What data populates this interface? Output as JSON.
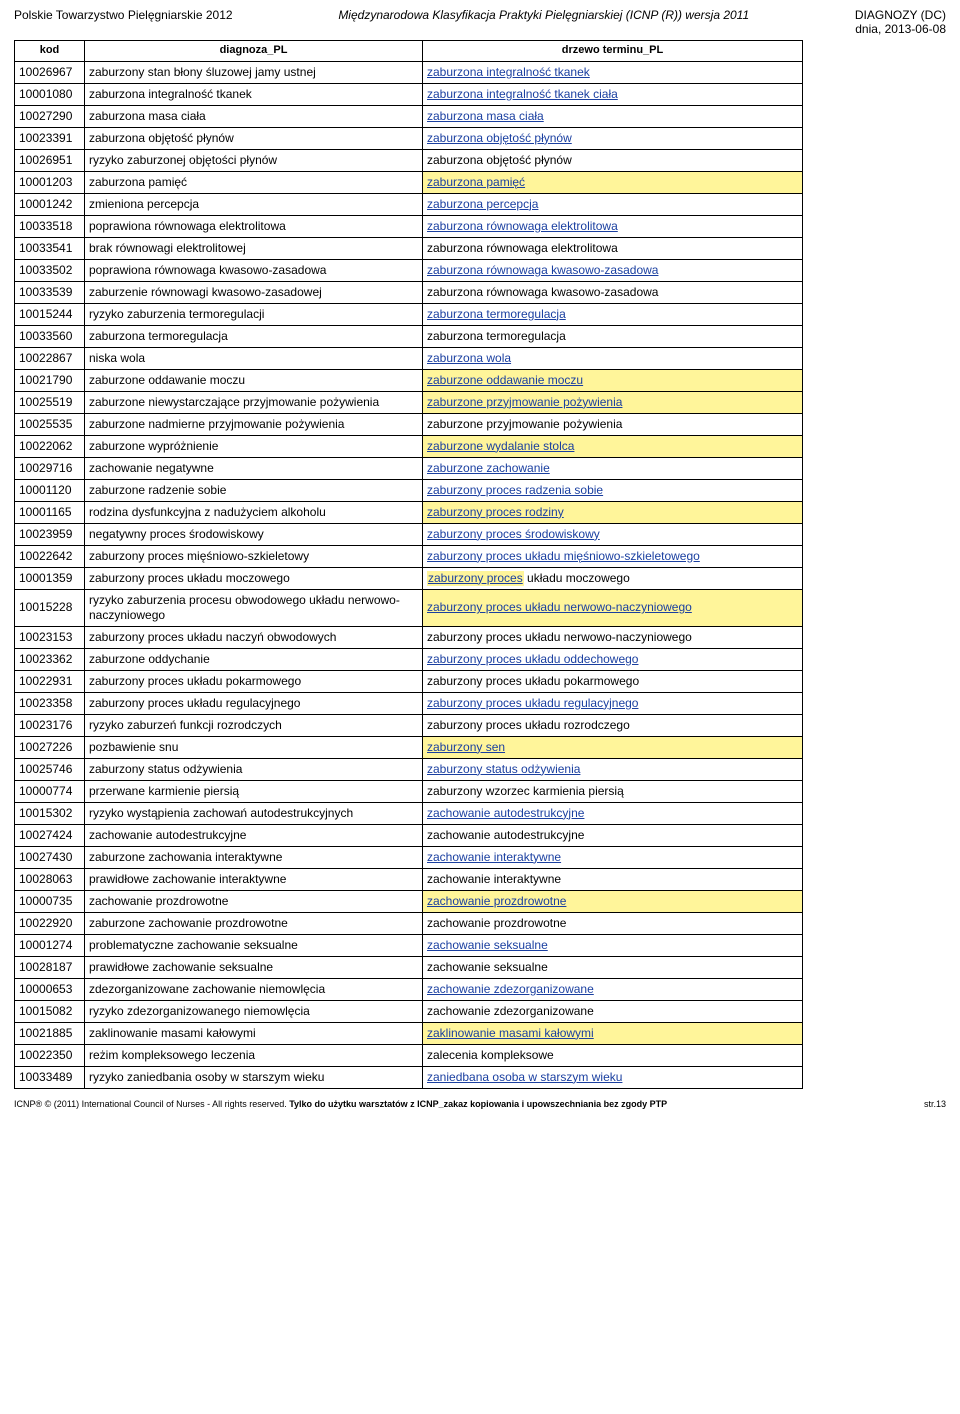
{
  "header": {
    "org": "Polskie Towarzystwo Pielęgniarskie 2012",
    "subtitle": "Międzynarodowa Klasyfikacja Praktyki Pielęgniarskiej (ICNP (R)) wersja 2011",
    "right1": "DIAGNOZY (DC)",
    "right2": "dnia, 2013-06-08"
  },
  "columns": {
    "kod": "kod",
    "diag": "diagnoza_PL",
    "tree": "drzewo terminu_PL"
  },
  "footer": {
    "left": "ICNP® © (2011) International Council of Nurses - All rights reserved. ",
    "bold": "Tylko do użytku warsztatów z ICNP_zakaz kopiowania i upowszechniania bez zgody PTP",
    "page": "str.13"
  },
  "rows": [
    {
      "kod": "10026967",
      "diag": "zaburzony stan błony śluzowej jamy ustnej",
      "tree": "zaburzona integralność tkanek",
      "style": "link"
    },
    {
      "kod": "10001080",
      "diag": "zaburzona integralność tkanek",
      "tree": "zaburzona integralność tkanek ciała",
      "style": "link"
    },
    {
      "kod": "10027290",
      "diag": "zaburzona masa ciała",
      "tree": "zaburzona masa ciała",
      "style": "link"
    },
    {
      "kod": "10023391",
      "diag": "zaburzona objętość płynów",
      "tree": "zaburzona objętość płynów",
      "style": "link"
    },
    {
      "kod": "10026951",
      "diag": "ryzyko zaburzonej objętości płynów",
      "tree": "zaburzona objętość płynów",
      "style": "plain"
    },
    {
      "kod": "10001203",
      "diag": "zaburzona pamięć",
      "tree": "zaburzona pamięć",
      "style": "hilink"
    },
    {
      "kod": "10001242",
      "diag": "zmieniona percepcja",
      "tree": "zaburzona percepcja",
      "style": "link"
    },
    {
      "kod": "10033518",
      "diag": "poprawiona równowaga elektrolitowa",
      "tree": "zaburzona równowaga elektrolitowa",
      "style": "link"
    },
    {
      "kod": "10033541",
      "diag": "brak równowagi elektrolitowej",
      "tree": "zaburzona równowaga elektrolitowa",
      "style": "plain"
    },
    {
      "kod": "10033502",
      "diag": "poprawiona równowaga kwasowo-zasadowa",
      "tree": "zaburzona równowaga kwasowo-zasadowa",
      "style": "link"
    },
    {
      "kod": "10033539",
      "diag": "zaburzenie równowagi kwasowo-zasadowej",
      "tree": "zaburzona równowaga kwasowo-zasadowa",
      "style": "plain"
    },
    {
      "kod": "10015244",
      "diag": "ryzyko zaburzenia termoregulacji",
      "tree": "zaburzona termoregulacja",
      "style": "link"
    },
    {
      "kod": "10033560",
      "diag": "zaburzona termoregulacja",
      "tree": "zaburzona termoregulacja",
      "style": "plain"
    },
    {
      "kod": "10022867",
      "diag": "niska wola",
      "tree": "zaburzona wola",
      "style": "link"
    },
    {
      "kod": "10021790",
      "diag": "zaburzone oddawanie moczu",
      "tree": "zaburzone oddawanie moczu",
      "style": "hilink"
    },
    {
      "kod": "10025519",
      "diag": "zaburzone niewystarczające przyjmowanie pożywienia",
      "tree": "zaburzone przyjmowanie pożywienia",
      "style": "hilink"
    },
    {
      "kod": "10025535",
      "diag": "zaburzone nadmierne przyjmowanie pożywienia",
      "tree": "zaburzone przyjmowanie pożywienia",
      "style": "plain"
    },
    {
      "kod": "10022062",
      "diag": "zaburzone wypróżnienie",
      "tree": "zaburzone wydalanie stolca",
      "style": "hilink"
    },
    {
      "kod": "10029716",
      "diag": "zachowanie negatywne",
      "tree": "zaburzone zachowanie",
      "style": "link"
    },
    {
      "kod": "10001120",
      "diag": "zaburzone radzenie sobie",
      "tree": "zaburzony proces radzenia sobie",
      "style": "link"
    },
    {
      "kod": "10001165",
      "diag": "rodzina dysfunkcyjna z nadużyciem alkoholu",
      "tree": "zaburzony proces rodziny",
      "style": "hilink"
    },
    {
      "kod": "10023959",
      "diag": "negatywny proces środowiskowy",
      "tree": "zaburzony proces środowiskowy",
      "style": "link"
    },
    {
      "kod": "10022642",
      "diag": "zaburzony proces mięśniowo-szkieletowy",
      "tree": "zaburzony proces układu mięśniowo-szkieletowego",
      "style": "link"
    },
    {
      "kod": "10001359",
      "diag": "zaburzony proces układu moczowego",
      "tree": "zaburzony proces układu moczowego",
      "style": "partial",
      "prefix": "zaburzony proces"
    },
    {
      "kod": "10015228",
      "diag": "ryzyko zaburzenia procesu obwodowego układu nerwowo-naczyniowego",
      "tree": "zaburzony proces układu nerwowo-naczyniowego",
      "style": "hilink"
    },
    {
      "kod": "10023153",
      "diag": "zaburzony proces układu naczyń obwodowych",
      "tree": "zaburzony proces układu nerwowo-naczyniowego",
      "style": "plain"
    },
    {
      "kod": "10023362",
      "diag": "zaburzone oddychanie",
      "tree": "zaburzony proces układu oddechowego",
      "style": "link"
    },
    {
      "kod": "10022931",
      "diag": "zaburzony proces układu pokarmowego",
      "tree": "zaburzony proces układu pokarmowego",
      "style": "plain"
    },
    {
      "kod": "10023358",
      "diag": "zaburzony proces układu regulacyjnego",
      "tree": "zaburzony proces układu regulacyjnego",
      "style": "link"
    },
    {
      "kod": "10023176",
      "diag": "ryzyko zaburzeń funkcji rozrodczych",
      "tree": "zaburzony proces układu rozrodczego",
      "style": "plain"
    },
    {
      "kod": "10027226",
      "diag": "pozbawienie snu",
      "tree": "zaburzony sen",
      "style": "hilink"
    },
    {
      "kod": "10025746",
      "diag": "zaburzony status odżywienia",
      "tree": "zaburzony status odżywienia",
      "style": "link"
    },
    {
      "kod": "10000774",
      "diag": "przerwane karmienie piersią",
      "tree": "zaburzony wzorzec karmienia piersią",
      "style": "plain"
    },
    {
      "kod": "10015302",
      "diag": "ryzyko wystąpienia zachowań autodestrukcyjnych",
      "tree": "zachowanie autodestrukcyjne",
      "style": "link"
    },
    {
      "kod": "10027424",
      "diag": "zachowanie autodestrukcyjne",
      "tree": "zachowanie autodestrukcyjne",
      "style": "plain"
    },
    {
      "kod": "10027430",
      "diag": "zaburzone zachowania interaktywne",
      "tree": "zachowanie interaktywne",
      "style": "link"
    },
    {
      "kod": "10028063",
      "diag": "prawidłowe zachowanie interaktywne",
      "tree": "zachowanie interaktywne",
      "style": "plain"
    },
    {
      "kod": "10000735",
      "diag": "zachowanie prozdrowotne",
      "tree": "zachowanie prozdrowotne",
      "style": "hilink"
    },
    {
      "kod": "10022920",
      "diag": "zaburzone zachowanie prozdrowotne",
      "tree": "zachowanie prozdrowotne",
      "style": "plain"
    },
    {
      "kod": "10001274",
      "diag": "problematyczne zachowanie seksualne",
      "tree": "zachowanie seksualne",
      "style": "link"
    },
    {
      "kod": "10028187",
      "diag": "prawidłowe zachowanie seksualne",
      "tree": "zachowanie seksualne",
      "style": "plain"
    },
    {
      "kod": "10000653",
      "diag": "zdezorganizowane zachowanie niemowlęcia",
      "tree": "zachowanie zdezorganizowane",
      "style": "link"
    },
    {
      "kod": "10015082",
      "diag": "ryzyko zdezorganizowanego niemowlęcia",
      "tree": "zachowanie zdezorganizowane",
      "style": "plain"
    },
    {
      "kod": "10021885",
      "diag": "zaklinowanie masami kałowymi",
      "tree": "zaklinowanie masami kałowymi",
      "style": "hilink"
    },
    {
      "kod": "10022350",
      "diag": "reżim kompleksowego leczenia",
      "tree": "zalecenia kompleksowe",
      "style": "plain"
    },
    {
      "kod": "10033489",
      "diag": "ryzyko zaniedbania osoby w starszym wieku",
      "tree": "zaniedbana osoba w starszym wieku",
      "style": "link"
    }
  ]
}
